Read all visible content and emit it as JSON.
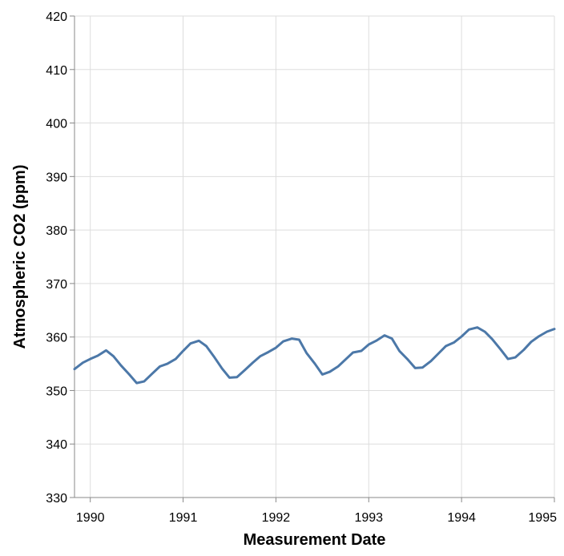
{
  "chart_data": {
    "type": "line",
    "title": "",
    "xlabel": "Measurement Date",
    "ylabel": "Atmospheric CO2 (ppm)",
    "xlim": [
      1989.83,
      1995.0
    ],
    "ylim": [
      330,
      420
    ],
    "x_ticks": [
      1990,
      1991,
      1992,
      1993,
      1994,
      1995
    ],
    "x_tick_labels": [
      "1990",
      "1991",
      "1992",
      "1993",
      "1994",
      "1995"
    ],
    "y_ticks": [
      330,
      340,
      350,
      360,
      370,
      380,
      390,
      400,
      410,
      420
    ],
    "y_tick_labels": [
      "330",
      "340",
      "350",
      "360",
      "370",
      "380",
      "390",
      "400",
      "410",
      "420"
    ],
    "grid": true,
    "series_color": "#4c78a8",
    "x": [
      1989.83,
      1989.92,
      1990.0,
      1990.08,
      1990.17,
      1990.25,
      1990.33,
      1990.42,
      1990.5,
      1990.58,
      1990.67,
      1990.75,
      1990.83,
      1990.92,
      1991.0,
      1991.08,
      1991.17,
      1991.25,
      1991.33,
      1991.42,
      1991.5,
      1991.58,
      1991.67,
      1991.75,
      1991.83,
      1991.92,
      1992.0,
      1992.08,
      1992.17,
      1992.25,
      1992.33,
      1992.42,
      1992.5,
      1992.58,
      1992.67,
      1992.75,
      1992.83,
      1992.92,
      1993.0,
      1993.08,
      1993.17,
      1993.25,
      1993.33,
      1993.42,
      1993.5,
      1993.58,
      1993.67,
      1993.75,
      1993.83,
      1993.92,
      1994.0,
      1994.08,
      1994.17,
      1994.25,
      1994.33,
      1994.42,
      1994.5,
      1994.58,
      1994.67,
      1994.75,
      1994.83,
      1994.92,
      1995.0
    ],
    "y": [
      354.0,
      355.2,
      355.9,
      356.5,
      357.5,
      356.4,
      354.7,
      353.0,
      351.4,
      351.7,
      353.2,
      354.5,
      355.0,
      355.9,
      357.4,
      358.8,
      359.3,
      358.3,
      356.4,
      354.1,
      352.4,
      352.5,
      353.9,
      355.2,
      356.4,
      357.2,
      358.0,
      359.2,
      359.7,
      359.5,
      357.0,
      355.0,
      353.0,
      353.5,
      354.5,
      355.8,
      357.1,
      357.4,
      358.6,
      359.3,
      360.3,
      359.7,
      357.4,
      355.8,
      354.2,
      354.3,
      355.5,
      356.9,
      358.3,
      359.0,
      360.1,
      361.4,
      361.8,
      361.0,
      359.6,
      357.7,
      355.9,
      356.2,
      357.6,
      359.1,
      360.1,
      361.0,
      361.5
    ]
  }
}
